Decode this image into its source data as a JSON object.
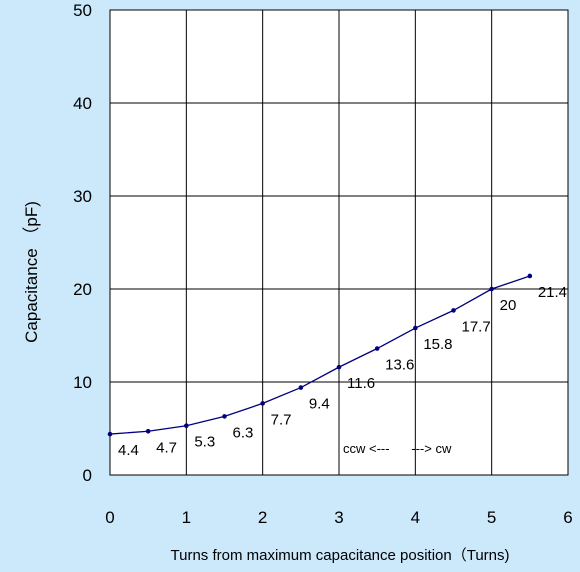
{
  "chart_data": {
    "type": "line",
    "xlabel": "Turns from maximum capacitance position（Turns)",
    "ylabel": "Capacitance （pF)",
    "xlim": [
      0,
      6
    ],
    "ylim": [
      0,
      50
    ],
    "x_ticks": [
      "0",
      "1",
      "2",
      "3",
      "4",
      "5",
      "6"
    ],
    "y_ticks": [
      "0",
      "10",
      "20",
      "30",
      "40",
      "50"
    ],
    "grid": true,
    "series": [
      {
        "x": [
          0,
          0.5,
          1,
          1.5,
          2,
          2.5,
          3,
          3.5,
          4,
          4.5,
          5,
          5.5
        ],
        "y": [
          4.4,
          4.7,
          5.3,
          6.3,
          7.7,
          9.4,
          11.6,
          13.6,
          15.8,
          17.7,
          20,
          21.4
        ],
        "labels": [
          "4.4",
          "4.7",
          "5.3",
          "6.3",
          "7.7",
          "9.4",
          "11.6",
          "13.6",
          "15.8",
          "17.7",
          "20",
          "21.4"
        ]
      }
    ],
    "annotation": "ccw <---      ---> cw",
    "colors": {
      "line": "#00007f",
      "grid": "#000000",
      "plot_bg": "#ffffff",
      "page_bg": "#cce8fb"
    }
  }
}
